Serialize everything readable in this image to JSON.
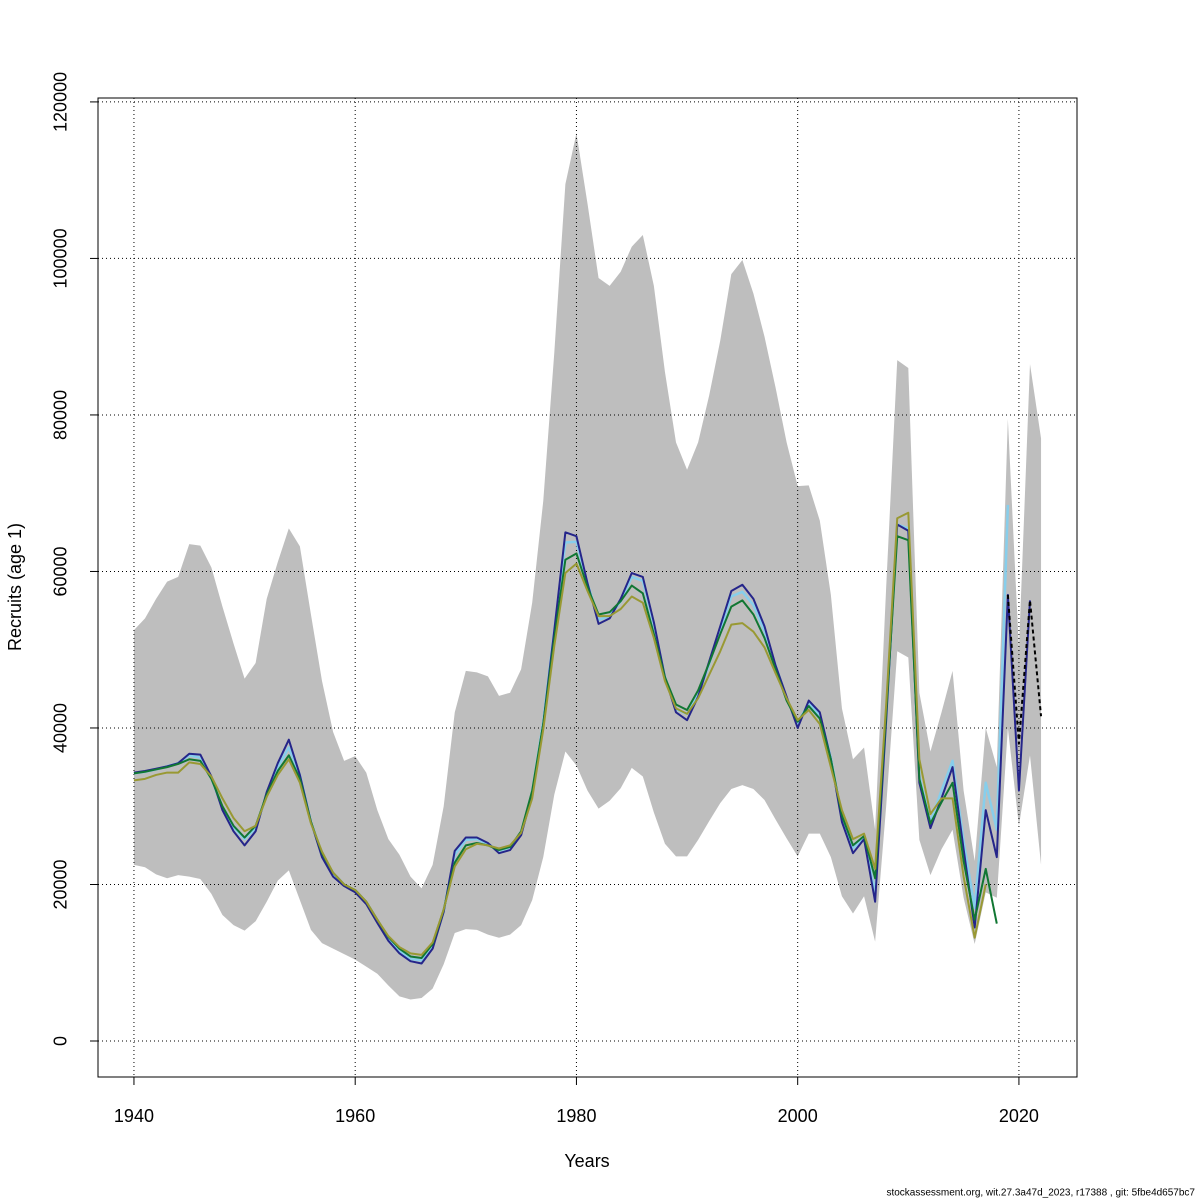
{
  "chart_data": {
    "type": "line",
    "x_label": "Years",
    "y_label": "Recruits (age 1)",
    "footer": "stockassessment.org, wit.27.3a47d_2023, r17388 , git: 5fbe4d657bc7",
    "xlim": [
      1936.75,
      2025.25
    ],
    "ylim": [
      -4600,
      120500
    ],
    "xticks": [
      1940,
      1960,
      1980,
      2000,
      2020
    ],
    "yticks": [
      0,
      20000,
      40000,
      60000,
      80000,
      100000,
      120000
    ],
    "grid": true,
    "band_color": "#bebebe",
    "x": [
      1940,
      1941,
      1942,
      1943,
      1944,
      1945,
      1946,
      1947,
      1948,
      1949,
      1950,
      1951,
      1952,
      1953,
      1954,
      1955,
      1956,
      1957,
      1958,
      1959,
      1960,
      1961,
      1962,
      1963,
      1964,
      1965,
      1966,
      1967,
      1968,
      1969,
      1970,
      1971,
      1972,
      1973,
      1974,
      1975,
      1976,
      1977,
      1978,
      1979,
      1980,
      1981,
      1982,
      1983,
      1984,
      1985,
      1986,
      1987,
      1988,
      1989,
      1990,
      1991,
      1992,
      1993,
      1994,
      1995,
      1996,
      1997,
      1998,
      1999,
      2000,
      2001,
      2002,
      2003,
      2004,
      2005,
      2006,
      2007,
      2008,
      2009,
      2010,
      2011,
      2012,
      2013,
      2014,
      2015,
      2016,
      2017,
      2018,
      2019,
      2020,
      2021,
      2022
    ],
    "band": {
      "upper": [
        52500,
        54000,
        56500,
        58700,
        59300,
        63500,
        63300,
        60500,
        55500,
        50800,
        46300,
        48300,
        56500,
        61200,
        65500,
        63200,
        54500,
        46000,
        39500,
        35800,
        36400,
        34300,
        29500,
        25800,
        23800,
        21000,
        19500,
        22500,
        30000,
        42000,
        47300,
        47100,
        46600,
        44100,
        44500,
        47500,
        56000,
        69000,
        88000,
        109500,
        116000,
        107000,
        97500,
        96500,
        98300,
        101500,
        103000,
        96500,
        85500,
        76500,
        73000,
        76500,
        82500,
        89500,
        98000,
        99800,
        95500,
        90000,
        83500,
        76500,
        70900,
        71000,
        66500,
        57000,
        42500,
        36000,
        37500,
        27000,
        58000,
        87000,
        86000,
        44500,
        37000,
        42000,
        47300,
        32000,
        23000,
        40000,
        35000,
        79500,
        50000,
        86500,
        77000
      ],
      "lower": [
        22500,
        22200,
        21300,
        20800,
        21200,
        21000,
        20700,
        18800,
        16100,
        14800,
        14100,
        15300,
        17800,
        20500,
        21800,
        18000,
        14200,
        12500,
        11800,
        11100,
        10400,
        9500,
        8600,
        7100,
        5700,
        5300,
        5500,
        6700,
        9800,
        13800,
        14300,
        14200,
        13600,
        13200,
        13600,
        14800,
        18000,
        23500,
        31500,
        37000,
        35200,
        32000,
        29700,
        30700,
        32300,
        34900,
        33800,
        29200,
        25200,
        23600,
        23600,
        25700,
        28100,
        30400,
        32200,
        32700,
        32200,
        30800,
        28300,
        25900,
        23600,
        26500,
        26500,
        23500,
        18500,
        16300,
        18500,
        12700,
        30000,
        49800,
        49000,
        25700,
        21200,
        24500,
        27000,
        18300,
        12400,
        19000,
        18300,
        40000,
        27500,
        36500,
        22500
      ]
    },
    "series": [
      {
        "color": "#87ceeb",
        "width": 2.5,
        "dash": false,
        "values": [
          34200,
          34400,
          34700,
          35100,
          35500,
          36500,
          36200,
          33600,
          29800,
          27300,
          25800,
          27200,
          31500,
          35000,
          37500,
          34000,
          28000,
          23800,
          21200,
          19900,
          19200,
          17600,
          15300,
          13000,
          11500,
          10500,
          10300,
          12100,
          16600,
          23800,
          25700,
          25800,
          25200,
          24300,
          24700,
          26600,
          31800,
          40800,
          52500,
          63700,
          63800,
          58500,
          53800,
          54300,
          56200,
          59300,
          58800,
          53200,
          46500,
          42400,
          41800,
          44200,
          48200,
          52500,
          56800,
          57400,
          55700,
          52400,
          48000,
          43800,
          40600,
          43200,
          41600,
          36200,
          28400,
          24600,
          26000,
          18800,
          41500,
          66000,
          65500,
          33800,
          28000,
          32000,
          35800,
          25500,
          17000,
          33000,
          27000,
          68500,
          null,
          null,
          null
        ]
      },
      {
        "color": "#25258a",
        "width": 2,
        "dash": false,
        "values": [
          34300,
          34500,
          34800,
          35100,
          35500,
          36700,
          36600,
          33800,
          29500,
          26800,
          25000,
          26800,
          31800,
          35500,
          38500,
          34000,
          28000,
          23500,
          21000,
          19800,
          19000,
          17500,
          15100,
          12800,
          11200,
          10200,
          9900,
          11800,
          16500,
          24300,
          26000,
          26000,
          25300,
          24000,
          24400,
          26300,
          31500,
          40500,
          52500,
          65000,
          64500,
          58500,
          53300,
          54000,
          56500,
          59800,
          59300,
          53500,
          46500,
          42000,
          41000,
          44000,
          48500,
          53000,
          57500,
          58300,
          56500,
          53000,
          48000,
          44000,
          40000,
          43500,
          42000,
          36000,
          28000,
          24000,
          25800,
          17800,
          41000,
          66000,
          65200,
          33000,
          27200,
          31000,
          35000,
          24500,
          14500,
          29500,
          23500,
          57000,
          32000,
          56300,
          null
        ]
      },
      {
        "color": "#117733",
        "width": 2,
        "dash": false,
        "values": [
          34200,
          34400,
          34700,
          35000,
          35400,
          36000,
          35800,
          33500,
          30000,
          27500,
          26000,
          27500,
          31500,
          34500,
          36500,
          33500,
          28000,
          24000,
          21500,
          20000,
          19300,
          17800,
          15500,
          13300,
          11800,
          10800,
          10600,
          12400,
          16800,
          22800,
          25000,
          25300,
          25000,
          24400,
          24800,
          26800,
          32000,
          40500,
          51500,
          61500,
          62300,
          58000,
          54500,
          54800,
          56200,
          58200,
          57200,
          52000,
          46500,
          43000,
          42300,
          44800,
          48300,
          52000,
          55500,
          56300,
          54500,
          51500,
          47500,
          43500,
          40800,
          42800,
          41200,
          36000,
          28800,
          25000,
          26200,
          20800,
          42000,
          64500,
          64000,
          33500,
          27800,
          30500,
          33000,
          23000,
          15500,
          22000,
          15000,
          null,
          null,
          null,
          null
        ]
      },
      {
        "color": "#999933",
        "width": 2,
        "dash": false,
        "values": [
          33300,
          33500,
          34000,
          34300,
          34300,
          35600,
          35400,
          33800,
          31000,
          28500,
          26800,
          27500,
          31200,
          34000,
          36000,
          33000,
          27800,
          24200,
          21500,
          20000,
          19300,
          17800,
          15500,
          13400,
          12000,
          11200,
          11000,
          12600,
          16800,
          22300,
          24500,
          25200,
          25000,
          24600,
          25000,
          26600,
          31000,
          39800,
          50500,
          59800,
          61000,
          57500,
          54300,
          54300,
          55200,
          56800,
          56000,
          51500,
          46000,
          42500,
          41800,
          43800,
          46800,
          49800,
          53200,
          53400,
          52300,
          50300,
          47000,
          43800,
          41000,
          42300,
          40500,
          35000,
          29500,
          25800,
          26500,
          22000,
          43000,
          66800,
          67500,
          36000,
          29000,
          31000,
          31000,
          21000,
          13200,
          20000,
          null,
          null,
          null,
          null,
          null
        ]
      },
      {
        "color": "#000000",
        "width": 2,
        "dash": true,
        "values": [
          null,
          null,
          null,
          null,
          null,
          null,
          null,
          null,
          null,
          null,
          null,
          null,
          null,
          null,
          null,
          null,
          null,
          null,
          null,
          null,
          null,
          null,
          null,
          null,
          null,
          null,
          null,
          null,
          null,
          null,
          null,
          null,
          null,
          null,
          null,
          null,
          null,
          null,
          null,
          null,
          null,
          null,
          null,
          null,
          null,
          null,
          null,
          null,
          null,
          null,
          null,
          null,
          null,
          null,
          null,
          null,
          null,
          null,
          null,
          null,
          null,
          null,
          null,
          null,
          null,
          null,
          null,
          null,
          null,
          null,
          null,
          null,
          null,
          null,
          null,
          null,
          null,
          null,
          null,
          57000,
          38000,
          56300,
          41500
        ]
      }
    ]
  }
}
